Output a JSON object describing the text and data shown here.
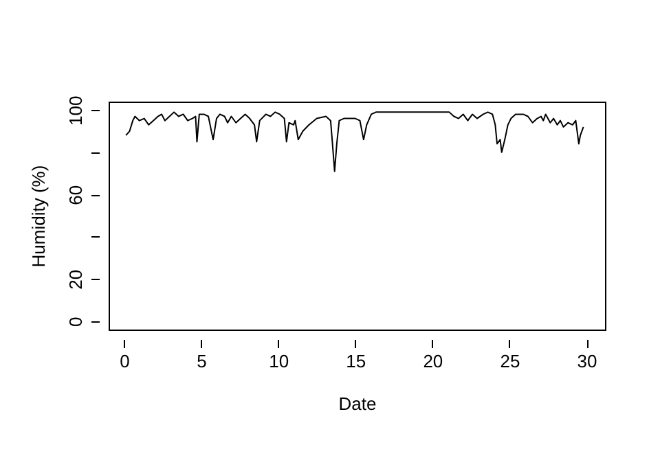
{
  "chart_data": {
    "type": "line",
    "xlabel": "Date",
    "ylabel": "Humidity (%)",
    "x": [
      0.12,
      0.36,
      0.57,
      0.71,
      1.0,
      1.31,
      1.6,
      1.9,
      2.2,
      2.44,
      2.65,
      2.95,
      3.24,
      3.54,
      3.84,
      4.13,
      4.43,
      4.64,
      4.73,
      4.88,
      5.18,
      5.47,
      5.78,
      6.0,
      6.22,
      6.52,
      6.72,
      6.96,
      7.26,
      7.56,
      7.86,
      8.15,
      8.46,
      8.6,
      8.8,
      9.2,
      9.5,
      9.8,
      10.1,
      10.4,
      10.54,
      10.7,
      11.0,
      11.1,
      11.3,
      11.6,
      12.0,
      12.5,
      13.1,
      13.4,
      13.5,
      13.66,
      13.8,
      13.96,
      14.26,
      14.7,
      15.0,
      15.3,
      15.54,
      15.74,
      16.04,
      16.34,
      21.1,
      21.4,
      21.7,
      22.0,
      22.3,
      22.6,
      22.9,
      23.3,
      23.6,
      23.9,
      24.08,
      24.2,
      24.4,
      24.5,
      24.7,
      24.9,
      25.1,
      25.4,
      25.9,
      26.2,
      26.5,
      26.8,
      27.05,
      27.2,
      27.35,
      27.65,
      27.86,
      28.1,
      28.3,
      28.5,
      28.8,
      29.1,
      29.3,
      29.5,
      29.6,
      29.8
    ],
    "series": [
      {
        "color": "#000000",
        "values": [
          88,
          90,
          95,
          97,
          95,
          96,
          93,
          95,
          97,
          98,
          95,
          97,
          99,
          97,
          98,
          95,
          96,
          97,
          85,
          98,
          98,
          97,
          86,
          96,
          98,
          97,
          94,
          97,
          94,
          96,
          98,
          96,
          93,
          85,
          95,
          98,
          97,
          99,
          98,
          96,
          85,
          94,
          93,
          95,
          86,
          90,
          93,
          96,
          97,
          95,
          86,
          71,
          84,
          95,
          96,
          96,
          96,
          95,
          86,
          93,
          98,
          99,
          99,
          97,
          96,
          98,
          95,
          98,
          96,
          98,
          99,
          98,
          93,
          84,
          86,
          80,
          86,
          93,
          96,
          98,
          98,
          97,
          94,
          96,
          97,
          95,
          98,
          94,
          96,
          93,
          95,
          92,
          94,
          93,
          95,
          84,
          88,
          92
        ]
      }
    ],
    "xlim": [
      -1.0,
      31.2
    ],
    "ylim": [
      -4,
      104
    ],
    "xticks": [
      0,
      5,
      10,
      15,
      20,
      25,
      30
    ],
    "yticks": [
      0,
      20,
      {
        "value": 40,
        "label": null
      },
      60,
      {
        "value": 80,
        "label": null
      },
      100
    ],
    "grid": false,
    "legend": false,
    "marker": "none",
    "line_style": "solid"
  }
}
